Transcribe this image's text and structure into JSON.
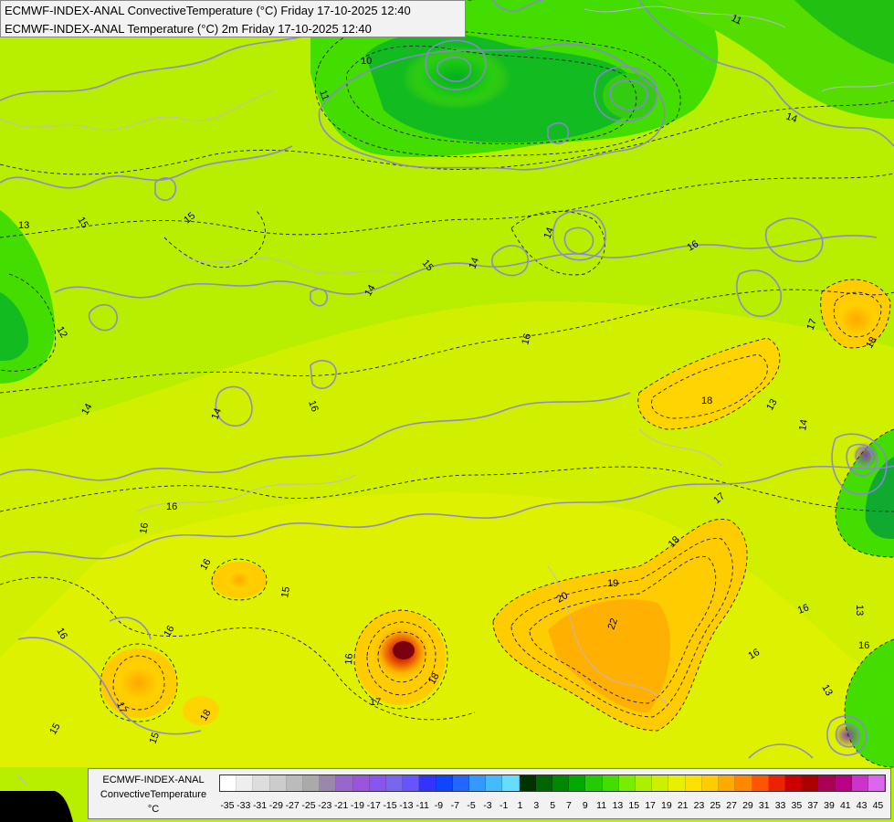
{
  "title": {
    "line1": "ECMWF-INDEX-ANAL ConvectiveTemperature (°C) Friday 17-10-2025 12:40",
    "line2": "ECMWF-INDEX-ANAL Temperature (°C) 2m Friday 17-10-2025 12:40"
  },
  "legend": {
    "line1": "ECMWF-INDEX-ANAL",
    "line2": "ConvectiveTemperature",
    "unit": "°C",
    "ticks": [
      "-35",
      "-33",
      "-31",
      "-29",
      "-27",
      "-25",
      "-23",
      "-21",
      "-19",
      "-17",
      "-15",
      "-13",
      "-11",
      "-9",
      "-7",
      "-5",
      "-3",
      "-1",
      "1",
      "3",
      "5",
      "7",
      "9",
      "11",
      "13",
      "15",
      "17",
      "19",
      "21",
      "23",
      "25",
      "27",
      "29",
      "31",
      "33",
      "35",
      "37",
      "39",
      "41",
      "43",
      "45"
    ],
    "colors": [
      "#ffffff",
      "#eeeeee",
      "#dddddd",
      "#cccccc",
      "#bbbbbb",
      "#aaaaaa",
      "#9988aa",
      "#9966cc",
      "#9955dd",
      "#8855ee",
      "#7766ee",
      "#6655ff",
      "#3333ff",
      "#1144ff",
      "#2266ff",
      "#3399ff",
      "#44bbff",
      "#66ddff",
      "#003300",
      "#006600",
      "#008800",
      "#00aa00",
      "#22cc00",
      "#44dd00",
      "#77ee00",
      "#aaf000",
      "#ccf000",
      "#e8f000",
      "#ffe000",
      "#ffcc00",
      "#ffaa00",
      "#ff8800",
      "#ff5500",
      "#ee2200",
      "#cc0000",
      "#aa0000",
      "#aa0055",
      "#bb0088",
      "#cc33cc",
      "#dd66ee"
    ]
  },
  "contour_labels": [
    "10",
    "11",
    "11",
    "13",
    "12",
    "13",
    "14",
    "15",
    "15",
    "15",
    "16",
    "14",
    "14",
    "14",
    "16",
    "14",
    "16",
    "16",
    "16",
    "17",
    "18",
    "18",
    "15",
    "14",
    "16",
    "15",
    "16",
    "17",
    "18",
    "19",
    "20",
    "22",
    "17",
    "16",
    "13",
    "16",
    "16",
    "16",
    "14",
    "18",
    "17",
    "15",
    "16",
    "13",
    "18"
  ]
}
